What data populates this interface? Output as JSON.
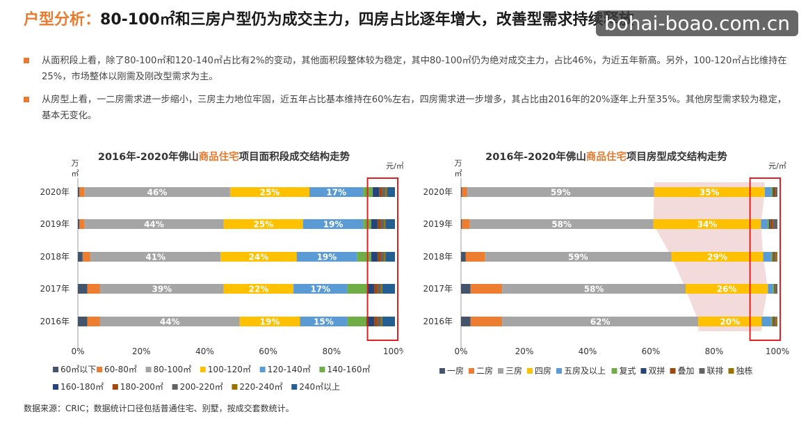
{
  "header": {
    "title_prefix": "户型分析：",
    "title_main": "80-100㎡和三房户型仍为成交主力，四房占比逐年增大，改善型需求持续释放"
  },
  "watermark": "bohai-boao.com.cn",
  "bullets": [
    "从面积段上看，除了80-100㎡和120-140㎡占比有2%的变动，其他面积段整体较为稳定，其中80-100㎡仍为绝对成交主力，占比46%，为近五年新高。另外，100-120㎡占比维持在25%，市场整体以刚需及刚改型需求为主。",
    "从房型上看，一二房需求进一步缩小，三房主力地位牢固，近五年占比基本维持在60%左右，四房需求进一步增多，其占比由2016年的20%逐年上升至35%。其他房型需求较为稳定，基本无变化。"
  ],
  "footnote": "数据来源：CRIC；数据统计口径包括普通住宅、别墅，按成交套数统计。",
  "colors": {
    "accent": "#e87b2f",
    "highlight_box": "#e02020",
    "shade": "#f2d5d5"
  },
  "chart_data": [
    {
      "type": "bar",
      "stacked": "percent",
      "orientation": "horizontal",
      "title_parts": [
        "2016年-2020年佛山",
        "商品住宅",
        "项目面积段成交结构走势"
      ],
      "unit_left": "万㎡",
      "unit_right": "元/㎡",
      "categories": [
        "2020年",
        "2019年",
        "2018年",
        "2017年",
        "2016年"
      ],
      "xticks": [
        "0%",
        "20%",
        "40%",
        "60%",
        "80%",
        "100%"
      ],
      "xlim": [
        0,
        100
      ],
      "legend_position": "bottom",
      "series": [
        {
          "name": "60㎡以下",
          "color": "#44546a",
          "values": [
            0.5,
            0.5,
            1.5,
            3,
            3
          ]
        },
        {
          "name": "60-80㎡",
          "color": "#ed7d31",
          "values": [
            1.5,
            1.5,
            2.5,
            4,
            4
          ]
        },
        {
          "name": "80-100㎡",
          "color": "#a5a5a5",
          "values": [
            46,
            44,
            41,
            39,
            44
          ]
        },
        {
          "name": "100-120㎡",
          "color": "#ffc000",
          "values": [
            25,
            25,
            24,
            22,
            19
          ]
        },
        {
          "name": "120-140㎡",
          "color": "#5b9bd5",
          "values": [
            17,
            19,
            19,
            17,
            15
          ]
        },
        {
          "name": "140-160㎡",
          "color": "#70ad47",
          "values": [
            3,
            2.5,
            4.5,
            6.5,
            6
          ]
        },
        {
          "name": "160-180㎡",
          "color": "#264478",
          "values": [
            2,
            2,
            2,
            2,
            2.5
          ]
        },
        {
          "name": "180-200㎡",
          "color": "#9e480e",
          "values": [
            1,
            1,
            1,
            1,
            1
          ]
        },
        {
          "name": "200-220㎡",
          "color": "#636363",
          "values": [
            1,
            1,
            1,
            1,
            1
          ]
        },
        {
          "name": "220-240㎡",
          "color": "#997300",
          "values": [
            0.5,
            0.5,
            0.5,
            0.5,
            0.5
          ]
        },
        {
          "name": "240㎡以上",
          "color": "#255e91",
          "values": [
            2.5,
            3,
            3,
            4,
            4
          ]
        }
      ],
      "data_labels": {
        "80-100㎡": [
          "46%",
          "44%",
          "41%",
          "39%",
          "44%"
        ],
        "100-120㎡": [
          "25%",
          "25%",
          "24%",
          "22%",
          "19%"
        ],
        "120-140㎡": [
          "17%",
          "19%",
          "19%",
          "17%",
          "15%"
        ]
      },
      "highlight_range": [
        92,
        100
      ]
    },
    {
      "type": "bar",
      "stacked": "percent",
      "orientation": "horizontal",
      "title_parts": [
        "2016年-2020年佛山",
        "商品住宅",
        "项目房型成交结构走势"
      ],
      "unit_left": "万㎡",
      "unit_right": "元/㎡",
      "categories": [
        "2020年",
        "2019年",
        "2018年",
        "2017年",
        "2016年"
      ],
      "xticks": [
        "0%",
        "20%",
        "40%",
        "60%",
        "80%",
        "100%"
      ],
      "xlim": [
        0,
        100
      ],
      "legend_position": "bottom",
      "series": [
        {
          "name": "一房",
          "color": "#44546a",
          "values": [
            0.3,
            0.3,
            1.5,
            3,
            3
          ]
        },
        {
          "name": "二房",
          "color": "#ed7d31",
          "values": [
            1.7,
            2.5,
            6,
            10,
            10
          ]
        },
        {
          "name": "三房",
          "color": "#a5a5a5",
          "values": [
            59,
            58,
            59,
            58,
            62
          ]
        },
        {
          "name": "四房",
          "color": "#ffc000",
          "values": [
            35,
            34,
            29,
            26,
            20
          ]
        },
        {
          "name": "五房及以上",
          "color": "#5b9bd5",
          "values": [
            2,
            2,
            2.5,
            1.5,
            3
          ]
        },
        {
          "name": "复式",
          "color": "#70ad47",
          "values": [
            0.5,
            0.5,
            0.5,
            0.5,
            0.5
          ]
        },
        {
          "name": "双拼",
          "color": "#264478",
          "values": [
            0.3,
            0.3,
            0.2,
            0.2,
            0.2
          ]
        },
        {
          "name": "叠加",
          "color": "#9e480e",
          "values": [
            0.7,
            0.9,
            0.3,
            0.3,
            0.3
          ]
        },
        {
          "name": "联排",
          "color": "#636363",
          "values": [
            0.5,
            1.5,
            0.5,
            0.5,
            0.5
          ]
        },
        {
          "name": "独栋",
          "color": "#997300",
          "values": [
            0,
            0,
            0.5,
            0,
            0.5
          ]
        }
      ],
      "data_labels": {
        "三房": [
          "59%",
          "58%",
          "59%",
          "58%",
          "62%"
        ],
        "四房": [
          "35%",
          "34%",
          "29%",
          "26%",
          "20%"
        ]
      },
      "highlight_range": [
        92,
        100
      ],
      "shaded_series": "四房"
    }
  ]
}
